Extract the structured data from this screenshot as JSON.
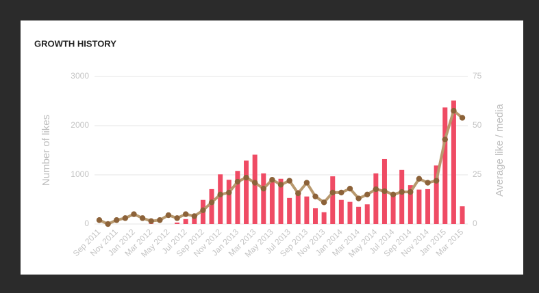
{
  "chart_data": {
    "type": "bar",
    "title": "GROWTH HISTORY",
    "ylabel": "Number of likes",
    "y2label": "Average like / media",
    "categories": [
      "Sep 2011",
      null,
      "Nov 2011",
      null,
      "Jan 2012",
      null,
      "Mar 2012",
      null,
      "May 2012",
      null,
      "Jul 2012",
      null,
      "Sep 2012",
      null,
      "Nov 2012",
      null,
      "Jan 2013",
      null,
      "Mar 2013",
      null,
      "May 2013",
      null,
      "Jul 2013",
      null,
      "Sep 2013",
      null,
      "Nov 2013",
      null,
      "Jan 2014",
      null,
      "Mar 2014",
      null,
      "May 2014",
      null,
      "Jul 2014",
      null,
      "Sep 2014",
      null,
      "Nov 2014",
      null,
      "Jan 2015",
      null,
      "Mar 2015"
    ],
    "series": [
      {
        "type": "bar",
        "color": "#ef4b64",
        "values": [
          0,
          0,
          0,
          0,
          0,
          0,
          10,
          0,
          0,
          30,
          100,
          170,
          490,
          710,
          1010,
          900,
          1080,
          1290,
          1410,
          1030,
          930,
          920,
          530,
          690,
          560,
          320,
          240,
          970,
          490,
          450,
          350,
          400,
          1030,
          1320,
          600,
          1100,
          790,
          700,
          710,
          1190,
          2370,
          2510,
          360
        ]
      },
      {
        "type": "line",
        "axis": "y2",
        "color": "#b8996e",
        "marker_color": "#8c6239",
        "values": [
          2,
          0,
          2,
          3,
          5,
          3,
          1.5,
          2,
          4.5,
          3,
          5,
          4,
          7,
          11,
          15,
          16,
          21.5,
          23.6,
          21,
          18,
          22.5,
          20,
          22,
          15.6,
          21,
          14,
          11,
          16,
          16,
          18,
          13,
          15,
          17.7,
          16.7,
          15,
          16.3,
          16.3,
          23,
          21,
          22,
          43,
          57.6,
          54
        ]
      }
    ],
    "ylim": [
      0,
      3000
    ],
    "yticks": [
      0,
      1000,
      2000,
      3000
    ],
    "y2lim": [
      0,
      75
    ],
    "y2ticks": [
      0,
      25,
      50,
      75
    ],
    "grid": true
  }
}
